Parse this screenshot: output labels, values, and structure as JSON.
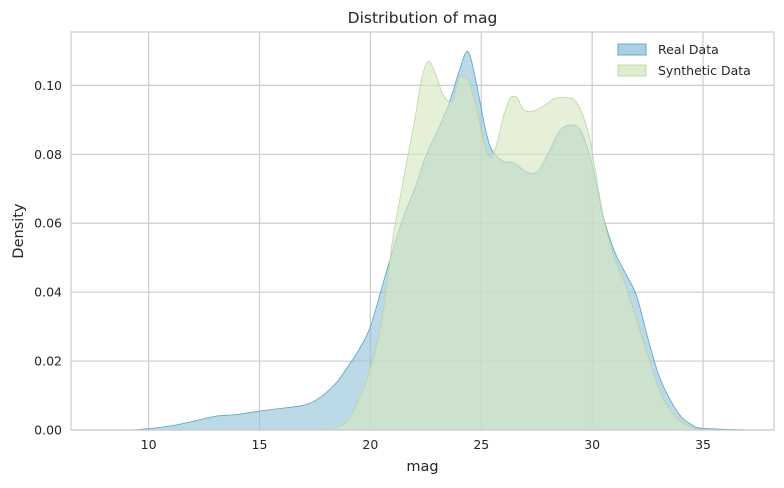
{
  "chart_data": {
    "type": "area",
    "title": "Distribution of mag",
    "xlabel": "mag",
    "ylabel": "Density",
    "xlim": [
      6.5,
      38.2
    ],
    "ylim": [
      0,
      0.1155
    ],
    "xticks": [
      10,
      15,
      20,
      25,
      30,
      35
    ],
    "yticks": [
      0.0,
      0.02,
      0.04,
      0.06,
      0.08,
      0.1
    ],
    "ytick_labels": [
      "0.00",
      "0.02",
      "0.04",
      "0.06",
      "0.08",
      "0.10"
    ],
    "grid": true,
    "legend_position": "top-right",
    "series": [
      {
        "name": "Real Data",
        "color": "#8fbfd9",
        "edge": "#4a9ac4",
        "x": [
          6.8,
          9,
          10,
          11,
          12,
          13,
          14,
          15,
          16,
          17,
          17.5,
          18,
          18.5,
          19,
          19.5,
          20,
          20.5,
          21,
          21.5,
          22,
          22.5,
          23,
          23.5,
          24,
          24.3,
          24.5,
          24.8,
          25.2,
          25.5,
          26,
          26.5,
          27,
          27.5,
          28,
          28.5,
          29,
          29.5,
          30,
          30.5,
          31,
          31.5,
          32,
          32.5,
          33,
          33.5,
          34,
          34.5,
          35,
          37
        ],
        "y": [
          0,
          0,
          0.0004,
          0.0012,
          0.0025,
          0.004,
          0.0045,
          0.0055,
          0.0063,
          0.0072,
          0.0085,
          0.0108,
          0.014,
          0.0185,
          0.0235,
          0.03,
          0.041,
          0.052,
          0.062,
          0.07,
          0.0795,
          0.0865,
          0.094,
          0.104,
          0.1095,
          0.1085,
          0.1,
          0.087,
          0.081,
          0.078,
          0.0775,
          0.075,
          0.0748,
          0.08,
          0.0865,
          0.0885,
          0.0868,
          0.077,
          0.062,
          0.052,
          0.0455,
          0.039,
          0.027,
          0.016,
          0.009,
          0.004,
          0.0015,
          0.0005,
          0
        ]
      },
      {
        "name": "Synthetic Data",
        "color": "#d6e6c0",
        "edge": "#b7d09a",
        "x": [
          17.5,
          18,
          18.5,
          19,
          19.5,
          20,
          20.5,
          21,
          21.5,
          22,
          22.3,
          22.6,
          22.9,
          23.3,
          23.7,
          24,
          24.4,
          24.8,
          25.1,
          25.4,
          25.7,
          26,
          26.3,
          26.6,
          26.9,
          27.3,
          27.8,
          28.3,
          28.8,
          29.3,
          29.8,
          30.1,
          30.5,
          31,
          31.5,
          32,
          32.5,
          33,
          33.5,
          34,
          34.5,
          35
        ],
        "y": [
          0,
          0.0002,
          0.0008,
          0.003,
          0.009,
          0.018,
          0.031,
          0.055,
          0.073,
          0.09,
          0.1015,
          0.107,
          0.104,
          0.097,
          0.0955,
          0.102,
          0.1015,
          0.093,
          0.084,
          0.079,
          0.083,
          0.091,
          0.0962,
          0.0965,
          0.093,
          0.0925,
          0.094,
          0.0962,
          0.0965,
          0.095,
          0.087,
          0.077,
          0.062,
          0.05,
          0.042,
          0.032,
          0.022,
          0.012,
          0.006,
          0.0025,
          0.0008,
          0
        ]
      }
    ]
  }
}
